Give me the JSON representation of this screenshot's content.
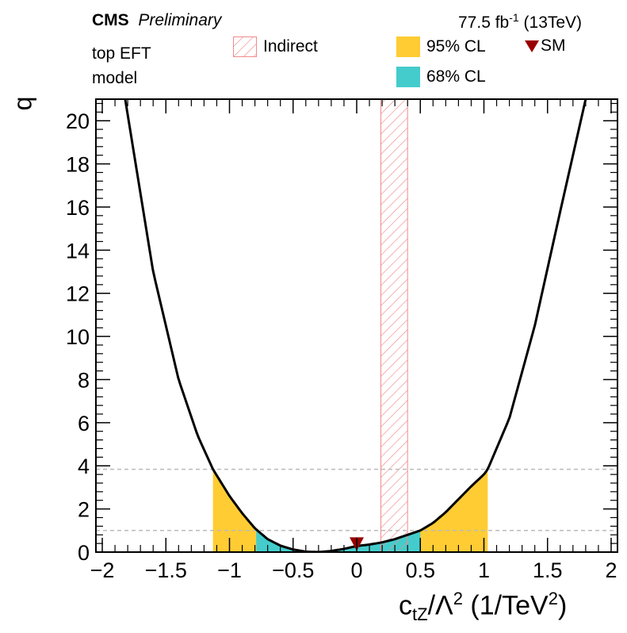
{
  "header": {
    "experiment": "CMS",
    "status": "Preliminary",
    "lumi": "77.5 fb",
    "lumi_exp": "-1",
    "energy": " (13TeV)",
    "model_line1": "top EFT",
    "model_line2": "model"
  },
  "legend": {
    "indirect": "Indirect",
    "cl95": "95% CL",
    "cl68": "68% CL",
    "sm": "SM"
  },
  "colors": {
    "cl95": "#ffcc33",
    "cl68": "#44cccc",
    "indirect": "#f08a8a",
    "sm": "#990000",
    "curve": "#000000",
    "dashed": "#bbbbbb"
  },
  "axes": {
    "ylabel": "q",
    "xlabel_main": "c",
    "xlabel_sub": "tZ",
    "xlabel_rest": "/Λ",
    "xlabel_sup": "2",
    "xlabel_units": " (1/TeV",
    "xlabel_units_sup": "2",
    "xlabel_close": ")"
  },
  "chart_data": {
    "type": "line",
    "xlim": [
      -2.05,
      2.05
    ],
    "ylim": [
      0,
      21
    ],
    "xticks": [
      -2,
      -1.5,
      -1,
      -0.5,
      0,
      0.5,
      1,
      1.5,
      2
    ],
    "xtick_labels": [
      "−2",
      "−1.5",
      "−1",
      "−0.5",
      "0",
      "0.5",
      "1",
      "1.5",
      "2"
    ],
    "yticks": [
      0,
      2,
      4,
      6,
      8,
      10,
      12,
      14,
      16,
      18,
      20
    ],
    "ytick_labels": [
      "0",
      "2",
      "4",
      "6",
      "8",
      "10",
      "12",
      "14",
      "16",
      "18",
      "20"
    ],
    "curve": {
      "x": [
        -1.82,
        -1.6,
        -1.4,
        -1.25,
        -1.13,
        -1.0,
        -0.9,
        -0.8,
        -0.7,
        -0.6,
        -0.5,
        -0.4,
        -0.3,
        -0.2,
        -0.1,
        0.0,
        0.1,
        0.2,
        0.3,
        0.4,
        0.5,
        0.6,
        0.7,
        0.8,
        0.9,
        1.0,
        1.03,
        1.2,
        1.4,
        1.6,
        1.8
      ],
      "y": [
        21.0,
        13.0,
        8.0,
        5.4,
        3.84,
        2.6,
        1.8,
        1.1,
        0.6,
        0.3,
        0.12,
        0.02,
        0.0,
        0.05,
        0.15,
        0.28,
        0.35,
        0.45,
        0.6,
        0.8,
        1.0,
        1.35,
        1.85,
        2.45,
        3.05,
        3.6,
        3.84,
        6.2,
        10.5,
        15.8,
        21.0
      ]
    },
    "cl95_interval": [
      -1.13,
      1.03
    ],
    "cl68_interval": [
      -0.79,
      0.5
    ],
    "cl95_threshold": 3.84,
    "cl68_threshold": 1.0,
    "indirect_band": [
      0.19,
      0.4
    ],
    "sm_point": {
      "x": 0,
      "y": 0.28
    }
  }
}
